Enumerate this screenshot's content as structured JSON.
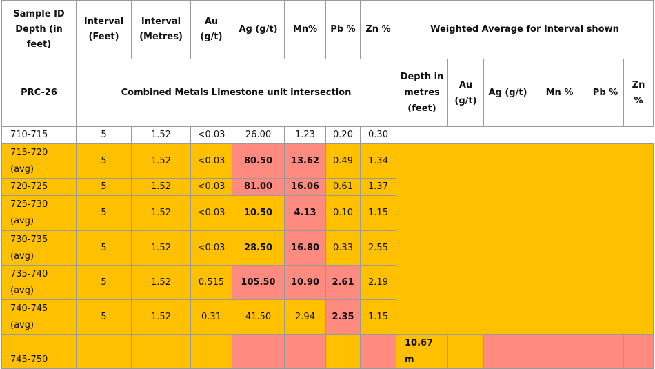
{
  "header": {
    "left": [
      "Sample ID Depth (in feet)",
      "Interval (Feet)",
      "Interval (Metres)",
      "Au (g/t)",
      "Ag (g/t)",
      "Mn%",
      "Pb %",
      "Zn %"
    ],
    "right_title": "Weighted Average for Interval shown"
  },
  "subheader": {
    "hole": "PRC-26",
    "note": "Combined Metals Limestone unit intersection",
    "right": [
      "Depth in metres (feet)",
      "Au (g/t)",
      "Ag (g/t)",
      "Mn %",
      "Pb %",
      "Zn %"
    ]
  },
  "rows": [
    [
      "710-715",
      "5",
      "1.52",
      "<0.03",
      "26.00",
      "1.23",
      "0.20",
      "0.30"
    ],
    [
      "715-720 (avg)",
      "5",
      "1.52",
      "<0.03",
      "80.50",
      "13.62",
      "0.49",
      "1.34"
    ],
    [
      "720-725",
      "5",
      "1.52",
      "<0.03",
      "81.00",
      "16.06",
      "0.61",
      "1.37"
    ],
    [
      "725-730 (avg)",
      "5",
      "1.52",
      "<0.03",
      "10.50",
      "4.13",
      "0.10",
      "1.15"
    ],
    [
      "730-735 (avg)",
      "5",
      "1.52",
      "<0.03",
      "28.50",
      "16.80",
      "0.33",
      "2.55"
    ],
    [
      "735-740 (avg)",
      "5",
      "1.52",
      "0.515",
      "105.50",
      "10.90",
      "2.61",
      "2.19"
    ],
    [
      "740-745 (avg)",
      "5",
      "1.52",
      "0.31",
      "41.50",
      "2.94",
      "2.35",
      "1.15"
    ]
  ],
  "last_row": {
    "sample": "745-750",
    "depth": "10.67 m"
  }
}
